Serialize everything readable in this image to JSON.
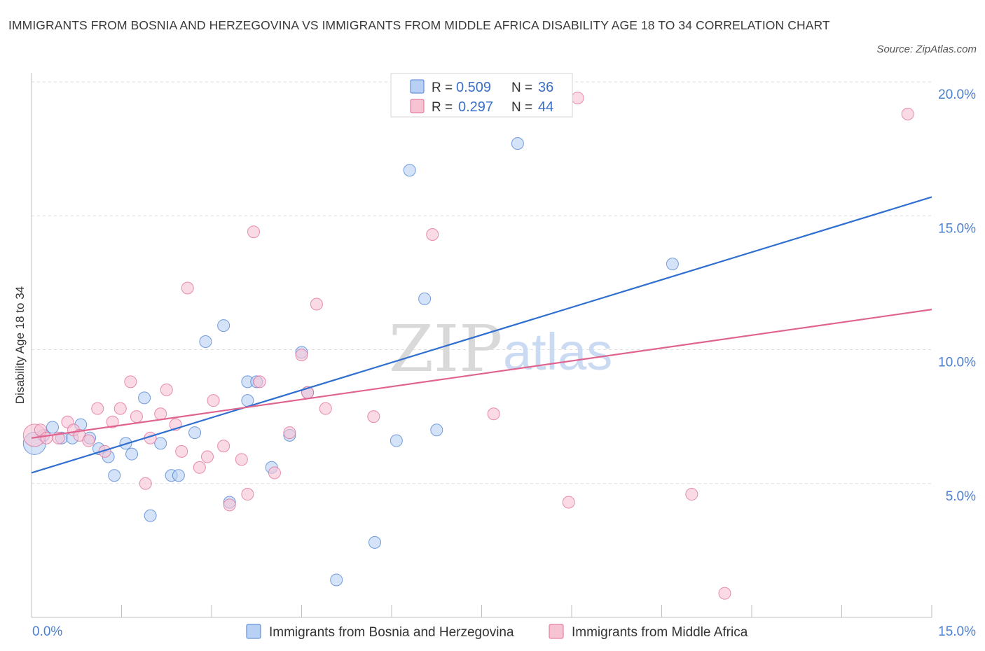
{
  "title": "IMMIGRANTS FROM BOSNIA AND HERZEGOVINA VS IMMIGRANTS FROM MIDDLE AFRICA DISABILITY AGE 18 TO 34 CORRELATION CHART",
  "source": "Source: ZipAtlas.com",
  "watermark": {
    "part1": "ZIP",
    "part2": "atlas"
  },
  "colors": {
    "blue": "#4a7fd0",
    "blue_fill": "#b8d0f3",
    "blue_line": "#2f6fcf",
    "pink": "#e06a96",
    "pink_fill": "#f6c3d3",
    "pink_line": "#e0648f",
    "grid": "#dddddd"
  },
  "legend": {
    "rows": [
      {
        "r_label": "R =",
        "r_value": "0.509",
        "n_label": "N =",
        "n_value": "36"
      },
      {
        "r_label": "R =",
        "r_value": "0.297",
        "n_label": "N =",
        "n_value": "44"
      }
    ]
  },
  "bottom_legend": [
    "Immigrants from Bosnia and Herzegovina",
    "Immigrants from Middle Africa"
  ],
  "chart_data": {
    "type": "scatter",
    "xlabel": "",
    "ylabel": "Disability Age 18 to 34",
    "xlim": [
      0,
      15
    ],
    "ylim": [
      0,
      20
    ],
    "x_tick_labels": [
      "0.0%",
      "15.0%"
    ],
    "y_tick_values": [
      5,
      10,
      15,
      20
    ],
    "y_tick_labels": [
      "5.0%",
      "10.0%",
      "15.0%",
      "20.0%"
    ],
    "grid": true,
    "legend_position": "top-center",
    "series": [
      {
        "name": "Immigrants from Bosnia and Herzegovina",
        "color": "#4a7fd0",
        "trend": {
          "x": [
            0,
            15
          ],
          "y": [
            5.4,
            15.7
          ]
        },
        "points": [
          [
            0.05,
            6.5
          ],
          [
            0.2,
            6.8
          ],
          [
            0.35,
            7.1
          ],
          [
            0.5,
            6.7
          ],
          [
            0.68,
            6.7
          ],
          [
            0.82,
            7.2
          ],
          [
            0.97,
            6.7
          ],
          [
            1.12,
            6.3
          ],
          [
            1.28,
            6.0
          ],
          [
            1.38,
            5.3
          ],
          [
            1.57,
            6.5
          ],
          [
            1.67,
            6.1
          ],
          [
            1.88,
            8.2
          ],
          [
            1.98,
            3.8
          ],
          [
            2.15,
            6.5
          ],
          [
            2.33,
            5.3
          ],
          [
            2.45,
            5.3
          ],
          [
            2.72,
            6.9
          ],
          [
            2.9,
            10.3
          ],
          [
            3.2,
            10.9
          ],
          [
            3.3,
            4.3
          ],
          [
            3.6,
            8.1
          ],
          [
            3.6,
            8.8
          ],
          [
            3.75,
            8.8
          ],
          [
            4.0,
            5.6
          ],
          [
            4.3,
            6.8
          ],
          [
            4.5,
            9.9
          ],
          [
            4.6,
            8.4
          ],
          [
            5.08,
            1.4
          ],
          [
            5.72,
            2.8
          ],
          [
            6.08,
            6.6
          ],
          [
            6.3,
            16.7
          ],
          [
            6.55,
            11.9
          ],
          [
            6.75,
            7.0
          ],
          [
            8.1,
            17.7
          ],
          [
            10.68,
            13.2
          ]
        ]
      },
      {
        "name": "Immigrants from Middle Africa",
        "color": "#e06a96",
        "trend": {
          "x": [
            0,
            15
          ],
          "y": [
            6.7,
            11.5
          ]
        },
        "points": [
          [
            0.05,
            6.8
          ],
          [
            0.15,
            7.0
          ],
          [
            0.25,
            6.7
          ],
          [
            0.45,
            6.7
          ],
          [
            0.6,
            7.3
          ],
          [
            0.7,
            7.0
          ],
          [
            0.8,
            6.8
          ],
          [
            0.95,
            6.6
          ],
          [
            1.1,
            7.8
          ],
          [
            1.22,
            6.2
          ],
          [
            1.35,
            7.3
          ],
          [
            1.48,
            7.8
          ],
          [
            1.65,
            8.8
          ],
          [
            1.75,
            7.5
          ],
          [
            1.9,
            5.0
          ],
          [
            1.98,
            6.7
          ],
          [
            2.15,
            7.6
          ],
          [
            2.25,
            8.5
          ],
          [
            2.4,
            7.2
          ],
          [
            2.5,
            6.2
          ],
          [
            2.6,
            12.3
          ],
          [
            2.8,
            5.6
          ],
          [
            2.93,
            6.0
          ],
          [
            3.03,
            8.1
          ],
          [
            3.2,
            6.4
          ],
          [
            3.3,
            4.2
          ],
          [
            3.5,
            5.9
          ],
          [
            3.6,
            4.6
          ],
          [
            3.7,
            14.4
          ],
          [
            3.8,
            8.8
          ],
          [
            4.05,
            5.4
          ],
          [
            4.3,
            6.9
          ],
          [
            4.5,
            9.8
          ],
          [
            4.6,
            8.4
          ],
          [
            4.75,
            11.7
          ],
          [
            4.9,
            7.8
          ],
          [
            5.7,
            7.5
          ],
          [
            6.68,
            14.3
          ],
          [
            7.7,
            7.6
          ],
          [
            8.95,
            4.3
          ],
          [
            9.1,
            19.4
          ],
          [
            11.0,
            4.6
          ],
          [
            11.55,
            0.9
          ],
          [
            14.6,
            18.8
          ]
        ]
      }
    ]
  }
}
